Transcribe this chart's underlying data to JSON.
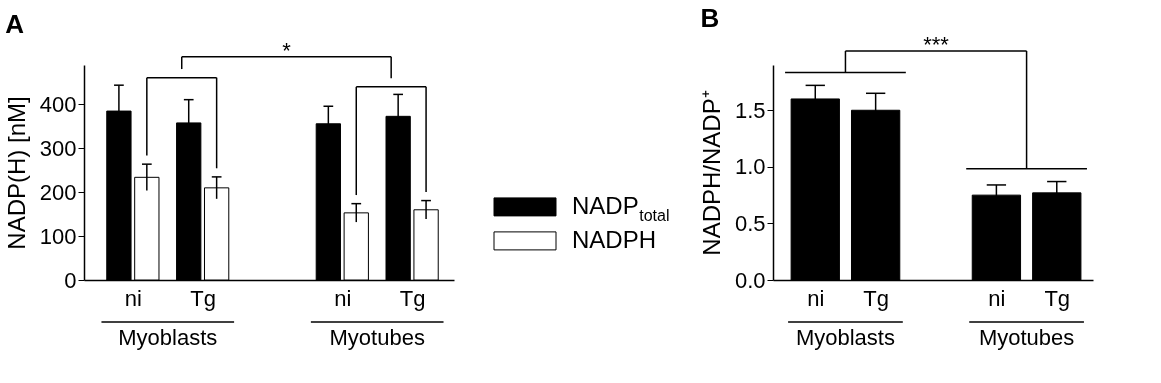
{
  "chart_data": [
    {
      "type": "bar",
      "title": "A",
      "ylabel": "NADP(H) [nM]",
      "categories": [
        "ni",
        "Tg",
        "ni",
        "Tg"
      ],
      "series": [
        {
          "name": "NADP$_{total}$",
          "color": "#000000",
          "values": [
            385,
            358,
            356,
            373
          ],
          "errors": [
            59,
            53,
            40,
            50
          ]
        },
        {
          "name": "NADPH",
          "color": "#ffffff",
          "values": [
            234,
            210,
            153,
            160
          ],
          "errors": [
            30,
            25,
            21,
            21
          ]
        }
      ],
      "ylim": [
        0,
        490
      ],
      "yticks": [
        0,
        100,
        200,
        300,
        400
      ],
      "legend": "right",
      "annotations": [
        "*",
        "Myoblasts",
        "Myotubes"
      ]
    },
    {
      "type": "bar",
      "title": "B",
      "ylabel": "NADPH/NADP⁺",
      "categories": [
        "ni",
        "Tg",
        "ni",
        "Tg"
      ],
      "series": [
        {
          "color": "#000000",
          "values": [
            1.6,
            1.5,
            0.75,
            0.77
          ],
          "errors": [
            0.12,
            0.15,
            0.09,
            0.1
          ]
        }
      ],
      "ylim": [
        0,
        1.9
      ],
      "yticks": [
        {
          "value": 0,
          "label": "0.0"
        },
        0.5,
        {
          "value": 1,
          "label": "1.0"
        },
        1.5
      ],
      "annotations": [
        "***",
        "Myoblasts",
        "Myotubes"
      ]
    }
  ]
}
